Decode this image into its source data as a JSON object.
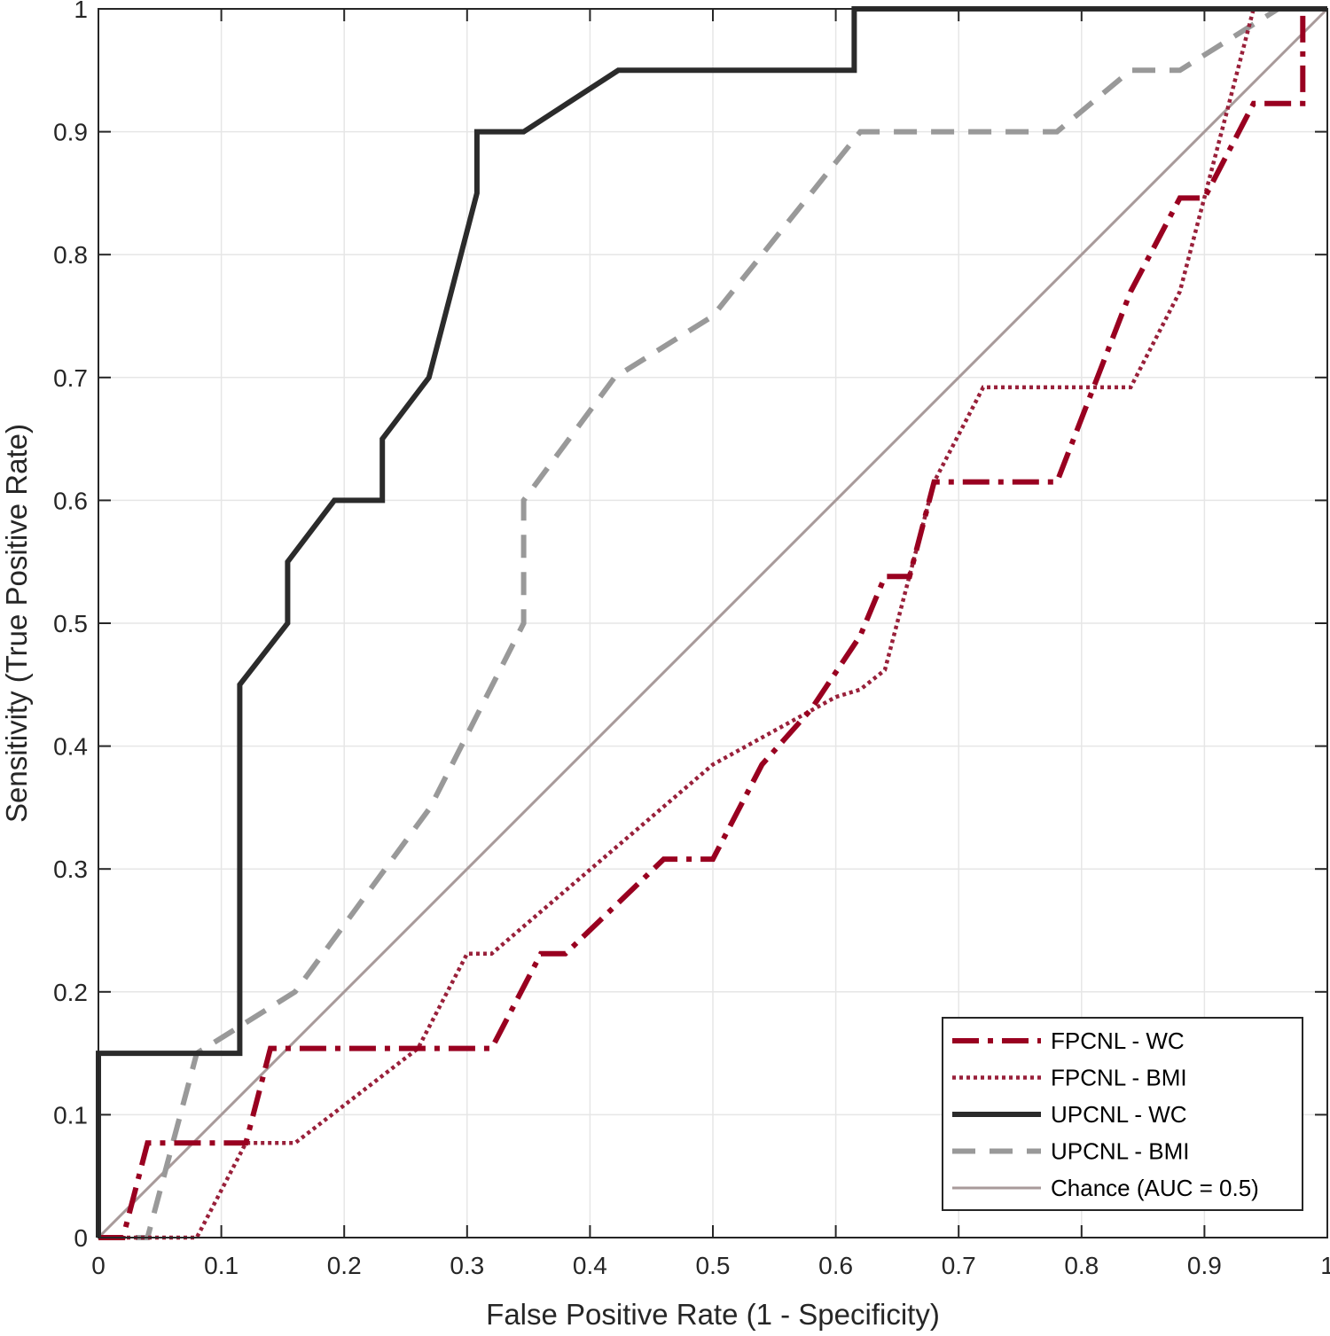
{
  "chart_data": {
    "type": "line",
    "title": "",
    "xlabel": "False Positive Rate (1 - Specificity)",
    "ylabel": "Sensitivity (True Positive Rate)",
    "xlim": [
      0,
      1
    ],
    "ylim": [
      0,
      1
    ],
    "grid": true,
    "legend_position": "bottom-right",
    "x_ticks": [
      "0",
      "0.1",
      "0.2",
      "0.3",
      "0.4",
      "0.5",
      "0.6",
      "0.7",
      "0.8",
      "0.9",
      "1"
    ],
    "y_ticks": [
      "0",
      "0.1",
      "0.2",
      "0.3",
      "0.4",
      "0.5",
      "0.6",
      "0.7",
      "0.8",
      "0.9",
      "1"
    ],
    "series": [
      {
        "name": "FPCNL - WC",
        "color": "#990020",
        "style": "dash-dot",
        "x": [
          0,
          0.02,
          0.04,
          0.12,
          0.14,
          0.32,
          0.36,
          0.38,
          0.46,
          0.5,
          0.54,
          0.58,
          0.62,
          0.64,
          0.66,
          0.68,
          0.78,
          0.84,
          0.88,
          0.9,
          0.94,
          0.98,
          0.98,
          1.0
        ],
        "y": [
          0,
          0,
          0.077,
          0.077,
          0.154,
          0.154,
          0.231,
          0.231,
          0.308,
          0.308,
          0.385,
          0.43,
          0.49,
          0.538,
          0.538,
          0.615,
          0.615,
          0.77,
          0.846,
          0.846,
          0.923,
          0.923,
          1.0,
          1.0
        ]
      },
      {
        "name": "FPCNL - BMI",
        "color": "#99203A",
        "style": "dotted",
        "x": [
          0,
          0.08,
          0.12,
          0.16,
          0.26,
          0.3,
          0.32,
          0.5,
          0.6,
          0.62,
          0.64,
          0.68,
          0.72,
          0.84,
          0.88,
          0.92,
          0.94,
          1.0
        ],
        "y": [
          0,
          0,
          0.077,
          0.077,
          0.154,
          0.231,
          0.231,
          0.385,
          0.44,
          0.446,
          0.462,
          0.615,
          0.692,
          0.692,
          0.77,
          0.923,
          1.0,
          1.0
        ]
      },
      {
        "name": "UPCNL - WC",
        "color": "#2b2b2b",
        "style": "solid",
        "x": [
          0,
          0,
          0.115,
          0.115,
          0.154,
          0.154,
          0.192,
          0.231,
          0.231,
          0.269,
          0.308,
          0.308,
          0.346,
          0.423,
          0.615,
          0.615,
          1.0
        ],
        "y": [
          0,
          0.15,
          0.15,
          0.45,
          0.5,
          0.55,
          0.6,
          0.6,
          0.65,
          0.7,
          0.85,
          0.9,
          0.9,
          0.95,
          0.95,
          1.0,
          1.0
        ]
      },
      {
        "name": "UPCNL - BMI",
        "color": "#999999",
        "style": "dashed",
        "x": [
          0,
          0.04,
          0.08,
          0.16,
          0.27,
          0.346,
          0.346,
          0.42,
          0.5,
          0.62,
          0.78,
          0.84,
          0.88,
          0.96,
          1.0
        ],
        "y": [
          0,
          0,
          0.15,
          0.2,
          0.35,
          0.5,
          0.6,
          0.7,
          0.75,
          0.9,
          0.9,
          0.95,
          0.95,
          1.0,
          1.0
        ]
      },
      {
        "name": "Chance (AUC = 0.5)",
        "color": "#a89a9a",
        "style": "solid-thin",
        "x": [
          0,
          1
        ],
        "y": [
          0,
          1
        ]
      }
    ]
  }
}
